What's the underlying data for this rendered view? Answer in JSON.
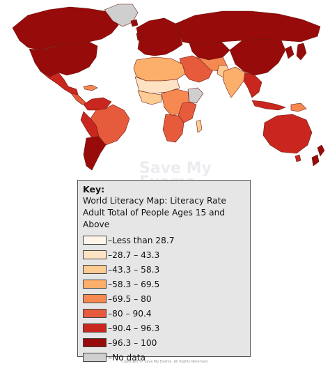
{
  "key": {
    "title": "Key:",
    "description": "World Literacy Map: Literacy Rate Adult Total of People Ages 15 and Above",
    "items": [
      {
        "label": "–Less than 28.7",
        "color": "#fff5eb"
      },
      {
        "label": "–28.7 – 43.3",
        "color": "#fde3c3"
      },
      {
        "label": "–43.3 – 58.3",
        "color": "#fdcb94"
      },
      {
        "label": "–58.3 – 69.5",
        "color": "#fcae6b"
      },
      {
        "label": "–69.5 – 80",
        "color": "#f68952"
      },
      {
        "label": "–80 – 90.4",
        "color": "#e65b3c"
      },
      {
        "label": "–90.4 – 96.3",
        "color": "#c9261f"
      },
      {
        "label": "–96.3 – 100",
        "color": "#980b0b"
      },
      {
        "label": "–No data",
        "color": "#cfcfcf"
      }
    ]
  },
  "watermark": {
    "line1": "Save My",
    "line2": "Exams"
  },
  "copyright": "Copyright © Save My Exams. All Rights Reserved."
}
